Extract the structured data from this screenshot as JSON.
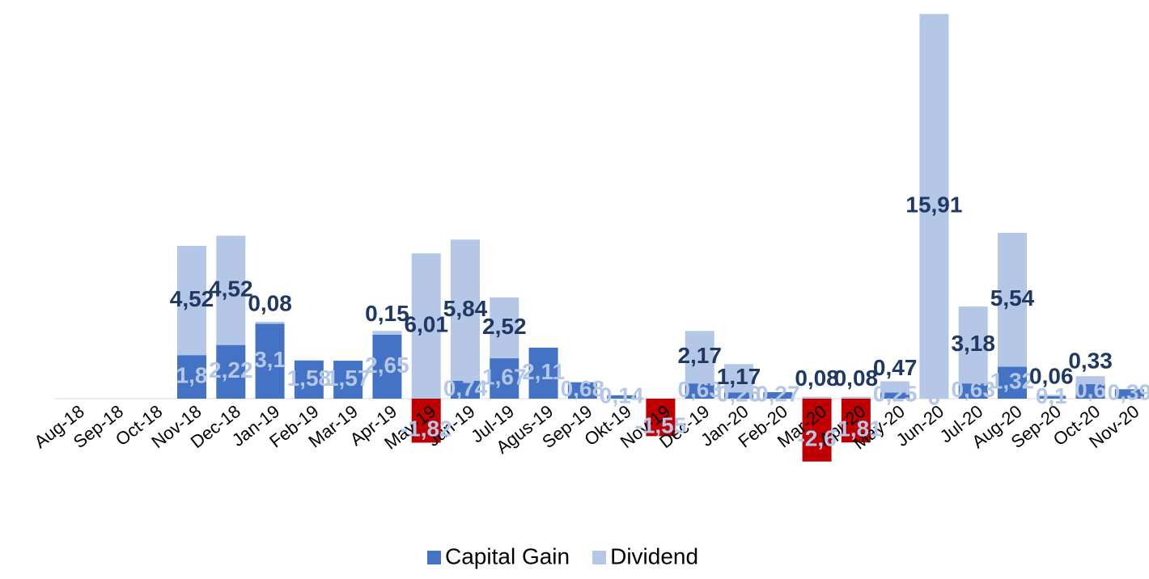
{
  "chart_data": {
    "type": "stacked_bar",
    "categories": [
      "Aug-18",
      "Sep-18",
      "Oct-18",
      "Nov-18",
      "Dec-18",
      "Jan-19",
      "Feb-19",
      "Mar-19",
      "Apr-19",
      "May-19",
      "Jun-19",
      "Jul-19",
      "Agus-19",
      "Sep-19",
      "Okt-19",
      "Nov-19",
      "Dec-19",
      "Jan-20",
      "Feb-20",
      "Mar-20",
      "Apr-20",
      "May-20",
      "Jun-20",
      "Jul-20",
      "Aug-20",
      "Sep-20",
      "Oct-20",
      "Nov-20"
    ],
    "negative_color": "#c00000",
    "series": [
      {
        "name": "Capital Gain",
        "color": "#4472c4",
        "label_color": "#b4c7e7",
        "values": [
          null,
          null,
          null,
          1.8,
          2.22,
          3.1,
          1.58,
          1.57,
          2.65,
          -1.82,
          0.74,
          1.67,
          2.11,
          0.68,
          0.14,
          -1.55,
          0.63,
          0.26,
          0.27,
          -2.6,
          -1.81,
          0.25,
          0,
          0.63,
          1.32,
          0.1,
          0.6,
          0.39
        ],
        "value_labels": [
          null,
          null,
          null,
          "1,8",
          "2,22",
          "3,1",
          "1,58",
          "1,57",
          "2,65",
          "-1,82",
          "0,74",
          "1,67",
          "2,11",
          "0,68",
          "0,14",
          "-1,55",
          "0,63",
          "0,26",
          "0,27",
          "-2,6",
          "-1,81",
          "0,25",
          "0",
          "0,63",
          "1,32",
          "0,1",
          "0,6",
          "0,39"
        ]
      },
      {
        "name": "Dividend",
        "color": "#b4c7e7",
        "label_color": "#1f3864",
        "values": [
          null,
          null,
          null,
          4.52,
          4.52,
          0.08,
          null,
          null,
          0.15,
          6.01,
          5.84,
          2.52,
          null,
          null,
          null,
          null,
          2.17,
          1.17,
          null,
          0.08,
          0.08,
          0.47,
          15.91,
          3.18,
          5.54,
          0.06,
          0.33,
          null
        ],
        "value_labels": [
          null,
          null,
          null,
          "4,52",
          "4,52",
          "0,08",
          null,
          null,
          "0,15",
          "6,01",
          "5,84",
          "2,52",
          null,
          null,
          null,
          null,
          "2,17",
          "1,17",
          null,
          "0,08",
          "0,08",
          "0,47",
          "15,91",
          "3,18",
          "5,54",
          "0,06",
          "0,33",
          null
        ]
      }
    ]
  }
}
